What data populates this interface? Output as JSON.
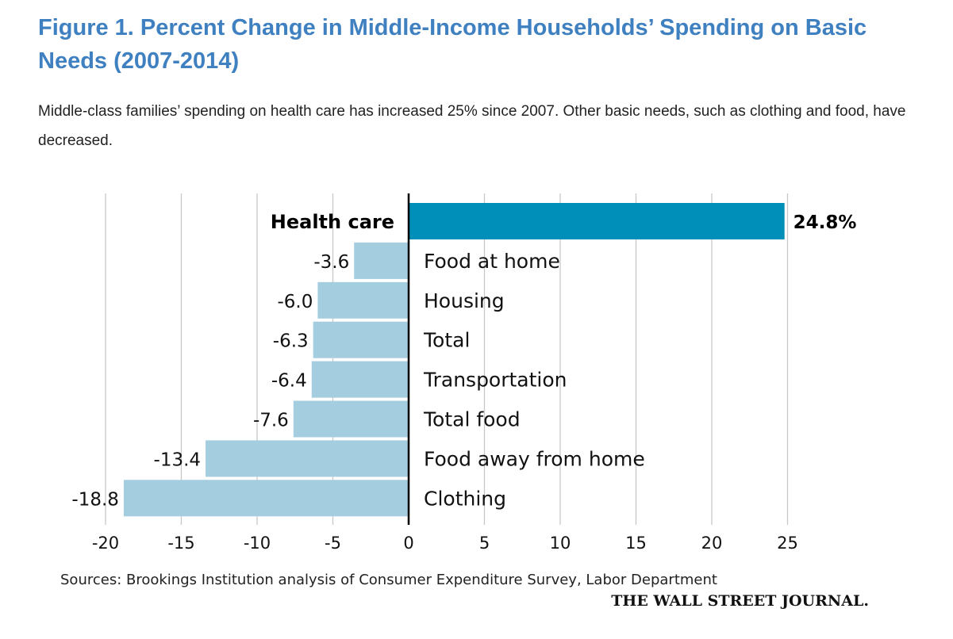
{
  "header": {
    "title": "Figure 1. Percent Change in Middle-Income Households’ Spending on Basic Needs (2007-2014)",
    "subtitle": "Middle-class families’ spending on health care has increased 25% since 2007. Other basic needs, such as clothing and food, have decreased."
  },
  "colors": {
    "title": "#3f80c0",
    "highlight_bar": "#008fb8",
    "bar": "#a5cde0",
    "gridline": "#c8c8c8",
    "axis": "#000000"
  },
  "chart_data": {
    "type": "bar",
    "orientation": "horizontal",
    "title": "Percent Change in Middle-Income Households’ Spending on Basic Needs (2007-2014)",
    "xlabel": "",
    "ylabel": "",
    "xlim": [
      -20,
      25
    ],
    "x_ticks": [
      -20,
      -15,
      -10,
      -5,
      0,
      5,
      10,
      15,
      20,
      25
    ],
    "grid": true,
    "categories": [
      "Health care",
      "Food at home",
      "Housing",
      "Total",
      "Transportation",
      "Total food",
      "Food away from home",
      "Clothing"
    ],
    "values": [
      24.8,
      -3.6,
      -6.0,
      -6.3,
      -6.4,
      -7.6,
      -13.4,
      -18.8
    ],
    "value_labels": [
      "24.8%",
      "-3.6",
      "-6.0",
      "-6.3",
      "-6.4",
      "-7.6",
      "-13.4",
      "-18.8"
    ],
    "highlighted": [
      "Health care"
    ],
    "source": "Sources: Brookings Institution analysis of Consumer Expenditure Survey, Labor Department",
    "credit": "THE WALL STREET JOURNAL."
  }
}
